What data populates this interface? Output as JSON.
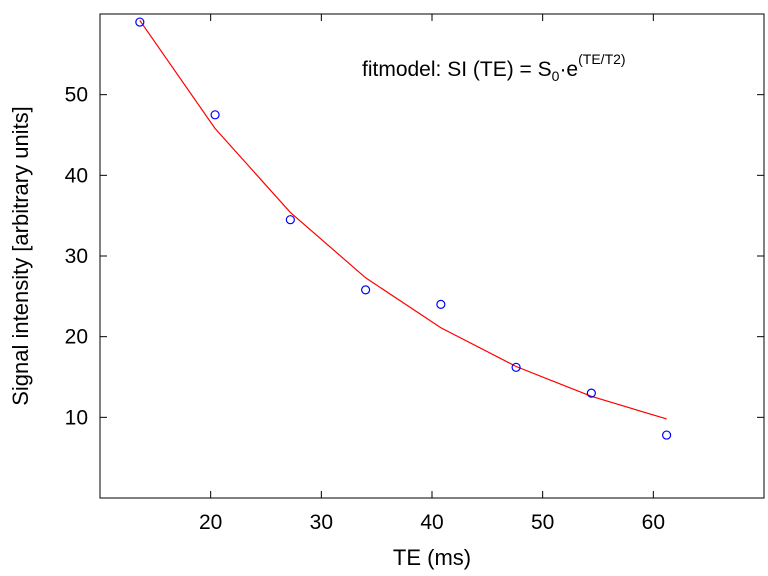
{
  "chart_data": {
    "type": "scatter",
    "xlabel": "TE (ms)",
    "ylabel": "Signal intensity [arbitrary units]",
    "xlim": [
      10,
      70
    ],
    "ylim": [
      0,
      60
    ],
    "xticks": [
      20,
      30,
      40,
      50,
      60
    ],
    "yticks": [
      10,
      20,
      30,
      40,
      50
    ],
    "grid": false,
    "annotation": {
      "prefix": "fitmodel: SI (TE) = S",
      "sub": "0",
      "middle": "·e",
      "sup": "(TE/T2)"
    },
    "series": [
      {
        "kind": "markers",
        "marker": "circle",
        "color": "#0000ff",
        "x": [
          13.6,
          20.4,
          27.2,
          34.0,
          40.8,
          47.6,
          54.4,
          61.2
        ],
        "y": [
          59.0,
          47.5,
          34.5,
          25.8,
          24.0,
          16.2,
          13.0,
          7.8
        ]
      },
      {
        "kind": "fit-line",
        "color": "#ff0000",
        "x": [
          13.6,
          20.4,
          27.2,
          34.0,
          40.8,
          47.6,
          54.4,
          61.2
        ],
        "y": [
          59.2,
          45.8,
          35.4,
          27.3,
          21.1,
          16.3,
          12.6,
          9.8
        ]
      }
    ]
  }
}
